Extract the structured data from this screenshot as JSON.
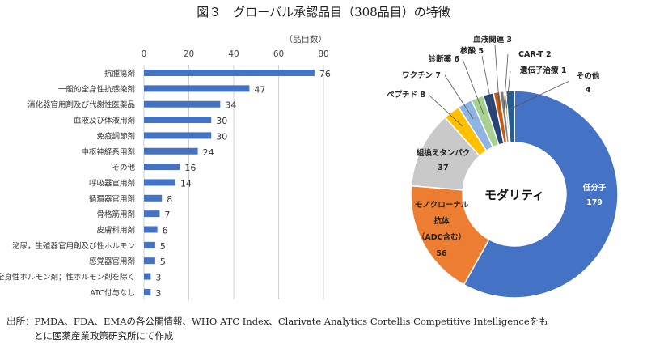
{
  "title": "図３　グローバル承認品目（308品目）の特徴",
  "chart_data": [
    {
      "type": "bar",
      "orientation": "horizontal",
      "unit_label": "（品目数）",
      "xlim": [
        0,
        80
      ],
      "ticks": [
        0,
        20,
        40,
        60,
        80
      ],
      "grid": true,
      "color": "#4472c4",
      "categories": [
        "抗腫瘍剤",
        "一般的全身性抗感染剤",
        "消化器官用剤及び代謝性医薬品",
        "血液及び体液用剤",
        "免疫調節剤",
        "中枢神経系用剤",
        "その他",
        "呼吸器官用剤",
        "循環器官用剤",
        "骨格筋用剤",
        "皮膚科用剤",
        "泌尿，生殖器官用剤及び性ホルモン",
        "感覚器官用剤",
        "全身性ホルモン剤；性ホルモン剤を除く",
        "ATC付与なし"
      ],
      "values": [
        76,
        47,
        34,
        30,
        30,
        24,
        16,
        14,
        8,
        7,
        6,
        5,
        5,
        3,
        3
      ]
    },
    {
      "type": "pie",
      "donut": true,
      "center_label": "モダリティ",
      "slices": [
        {
          "label": "低分子",
          "value": 179,
          "color": "#4472c4"
        },
        {
          "label": "モノクローナル抗体（ADC含む）",
          "label_lines": [
            "モノクローナル",
            "抗体",
            "（ADC含む）"
          ],
          "value": 56,
          "color": "#ed7d31"
        },
        {
          "label": "組換えタンパク",
          "value": 37,
          "color": "#c9c9c9"
        },
        {
          "label": "ペプチド",
          "value": 8,
          "color": "#ffc000"
        },
        {
          "label": "ワクチン",
          "value": 7,
          "color": "#8fb4e3"
        },
        {
          "label": "診断薬",
          "value": 6,
          "color": "#a9d18e"
        },
        {
          "label": "核酸",
          "value": 5,
          "color": "#264478"
        },
        {
          "label": "血液関連",
          "value": 3,
          "color": "#c55a11"
        },
        {
          "label": "CAR-T",
          "value": 2,
          "color": "#7f7f7f"
        },
        {
          "label": "遺伝子治療",
          "value": 1,
          "color": "#997300"
        },
        {
          "label": "その他",
          "value": 4,
          "color": "#255e91"
        }
      ]
    }
  ],
  "footer": {
    "line1": "出所：PMDA、FDA、EMAの各公開情報、WHO ATC Index、Clarivate Analytics Cortellis Competitive Intelligenceをも",
    "line2": "とに医薬産業政策研究所にて作成"
  }
}
